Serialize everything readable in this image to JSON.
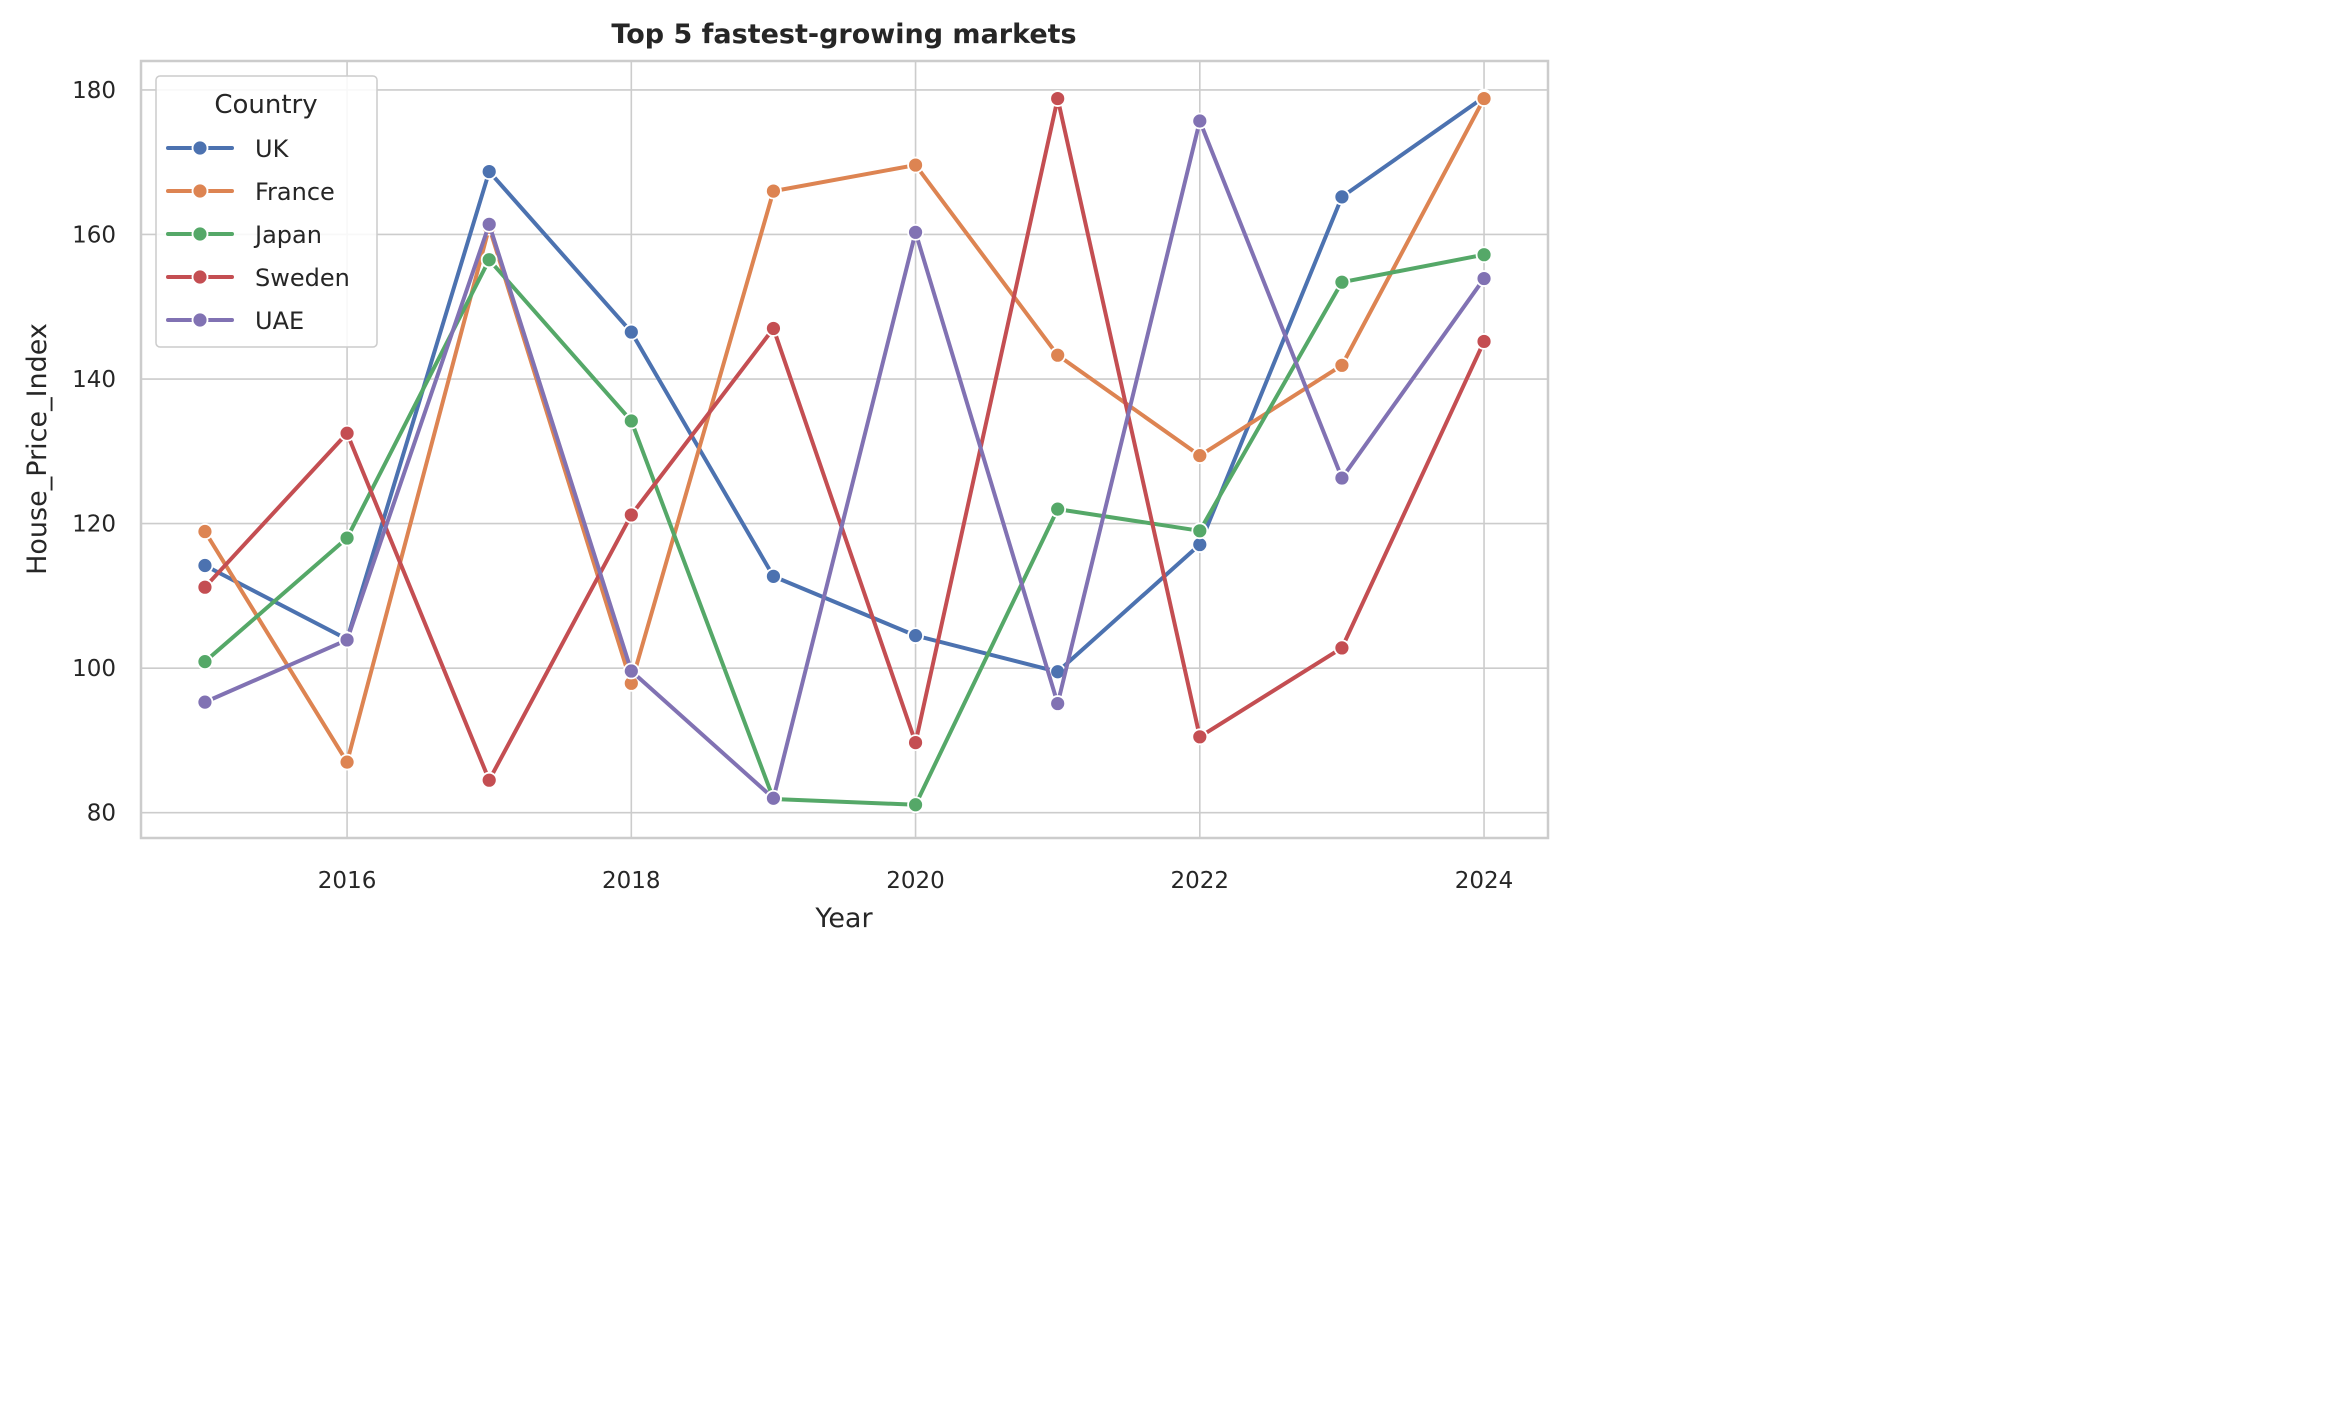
{
  "chart_data": {
    "type": "line",
    "title": "Top 5 fastest-growing markets",
    "xlabel": "Year",
    "ylabel": "House_Price_Index",
    "x": [
      2015,
      2016,
      2017,
      2018,
      2019,
      2020,
      2021,
      2022,
      2023,
      2024
    ],
    "xlim": [
      2014.55,
      2024.45
    ],
    "ylim": [
      76.5,
      184
    ],
    "xticks": [
      "2016",
      "2018",
      "2020",
      "2022",
      "2024"
    ],
    "xtick_values": [
      2016,
      2018,
      2020,
      2022,
      2024
    ],
    "yticks": [
      "80",
      "100",
      "120",
      "140",
      "160",
      "180"
    ],
    "ytick_values": [
      80,
      100,
      120,
      140,
      160,
      180
    ],
    "grid": true,
    "legend": {
      "title": "Country",
      "placement": "top-left"
    },
    "series": [
      {
        "name": "UK",
        "color": "#4c72b0",
        "values": [
          114.2,
          104.0,
          168.7,
          146.5,
          112.7,
          104.5,
          99.5,
          117.1,
          165.2,
          179.0
        ]
      },
      {
        "name": "France",
        "color": "#dd8452",
        "values": [
          118.9,
          87.0,
          161.0,
          97.9,
          166.0,
          169.6,
          143.3,
          129.4,
          141.9,
          178.8
        ]
      },
      {
        "name": "Japan",
        "color": "#55a868",
        "values": [
          100.9,
          118.0,
          156.5,
          134.2,
          81.9,
          81.1,
          122.0,
          119.0,
          153.4,
          157.2
        ]
      },
      {
        "name": "Sweden",
        "color": "#c44e52",
        "values": [
          111.2,
          132.5,
          84.5,
          121.2,
          147.0,
          89.7,
          178.8,
          90.5,
          102.8,
          145.2
        ]
      },
      {
        "name": "UAE",
        "color": "#8172b3",
        "values": [
          95.3,
          103.9,
          161.4,
          99.6,
          82.0,
          160.3,
          95.1,
          175.7,
          126.3,
          153.9
        ]
      }
    ]
  }
}
